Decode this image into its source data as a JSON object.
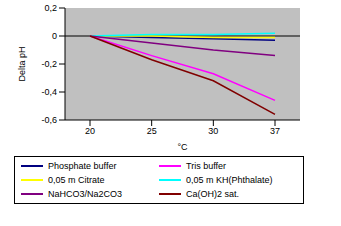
{
  "chart_data": {
    "type": "line",
    "x_label": "°C",
    "y_label": "Delta pH",
    "categories": [
      "20",
      "25",
      "30",
      "37"
    ],
    "ylim": [
      -0.6,
      0.2
    ],
    "yticks": [
      {
        "value": 0.2,
        "label": "0,2"
      },
      0,
      {
        "value": -0.2,
        "label": "-0,2"
      },
      {
        "value": -0.4,
        "label": "-0,4"
      },
      {
        "value": -0.6,
        "label": "-0,6"
      }
    ],
    "grid": false,
    "legend": "bottom",
    "series": [
      {
        "name": "Phosphate buffer",
        "color": "#000080",
        "values": [
          0,
          -0.01,
          -0.02,
          -0.03
        ]
      },
      {
        "name": "Tris buffer",
        "color": "#FF00FF",
        "values": [
          0,
          -0.14,
          -0.27,
          -0.46
        ]
      },
      {
        "name": "0,05 m Citrate",
        "color": "#FFFF00",
        "values": [
          0,
          0,
          -0.01,
          -0.01
        ]
      },
      {
        "name": "0,05 m KH(Phthalate)",
        "color": "#00FFFF",
        "values": [
          0,
          0.01,
          0.01,
          0.02
        ]
      },
      {
        "name": "NaHCO3/Na2CO3",
        "color": "#800080",
        "values": [
          0,
          -0.05,
          -0.1,
          -0.14
        ]
      },
      {
        "name": "Ca(OH)2 sat.",
        "color": "#800000",
        "values": [
          0,
          -0.17,
          -0.32,
          -0.56
        ]
      }
    ]
  }
}
